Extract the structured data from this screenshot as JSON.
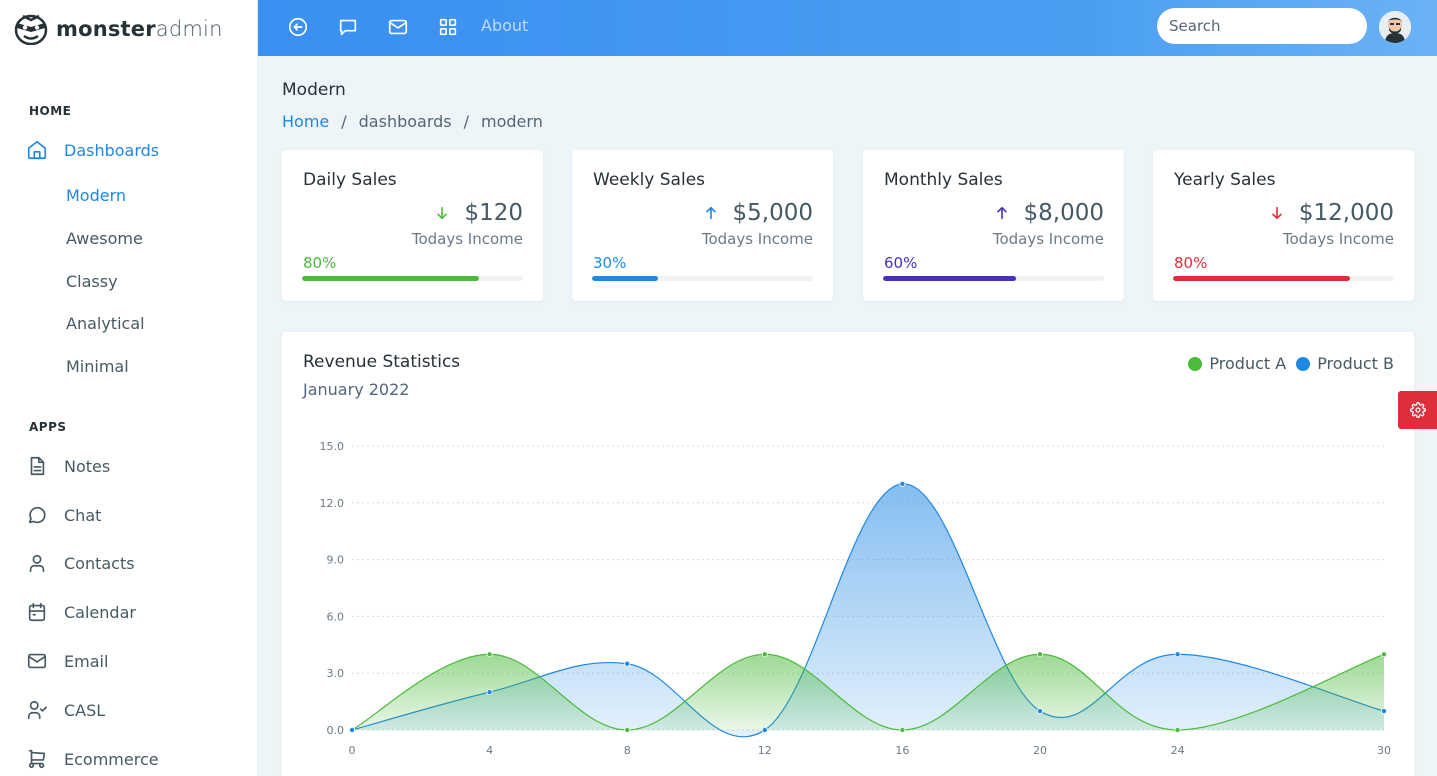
{
  "brand": {
    "name_bold": "monster",
    "name_light": "admin"
  },
  "sidebar": {
    "home_label": "HOME",
    "dashboards_label": "Dashboards",
    "dash_items": [
      "Modern",
      "Awesome",
      "Classy",
      "Analytical",
      "Minimal"
    ],
    "apps_label": "APPS",
    "apps": [
      "Notes",
      "Chat",
      "Contacts",
      "Calendar",
      "Email",
      "CASL",
      "Ecommerce"
    ]
  },
  "topbar": {
    "about_label": "About",
    "search_placeholder": "Search"
  },
  "page": {
    "title": "Modern",
    "breadcrumb": [
      "Home",
      "/",
      "dashboards",
      "/",
      "modern"
    ]
  },
  "stats": [
    {
      "title": "Daily Sales",
      "value": "$120",
      "sub": "Todays Income",
      "pct_label": "80%",
      "pct": 80,
      "trend": "down",
      "color": "#4cbb3c",
      "arrow_color": "#4cbb3c"
    },
    {
      "title": "Weekly Sales",
      "value": "$5,000",
      "sub": "Todays Income",
      "pct_label": "30%",
      "pct": 30,
      "trend": "up",
      "color": "#1e88e5",
      "arrow_color": "#1e88e5"
    },
    {
      "title": "Monthly Sales",
      "value": "$8,000",
      "sub": "Todays Income",
      "pct_label": "60%",
      "pct": 60,
      "trend": "up",
      "color": "#4a2fbd",
      "arrow_color": "#4a2fbd"
    },
    {
      "title": "Yearly Sales",
      "value": "$12,000",
      "sub": "Todays Income",
      "pct_label": "80%",
      "pct": 80,
      "trend": "down",
      "color": "#e02d3b",
      "arrow_color": "#e02d3b"
    }
  ],
  "revenue": {
    "title": "Revenue Statistics",
    "subtitle": "January 2022",
    "legend": [
      {
        "name": "Product A",
        "color": "#4cbb3c"
      },
      {
        "name": "Product B",
        "color": "#1e88e5"
      }
    ]
  },
  "chart_data": {
    "type": "area",
    "x": [
      0,
      4,
      8,
      12,
      16,
      20,
      24,
      30
    ],
    "series": [
      {
        "name": "Product A",
        "color": "#4cbb3c",
        "values": [
          0,
          4,
          0,
          4,
          0,
          4,
          0,
          4
        ]
      },
      {
        "name": "Product B",
        "color": "#1e88e5",
        "values": [
          0,
          2,
          3.5,
          0,
          13,
          1,
          4,
          1
        ]
      }
    ],
    "y_ticks": [
      "0.0",
      "3.0",
      "6.0",
      "9.0",
      "12.0",
      "15.0"
    ],
    "x_ticks": [
      "0",
      "4",
      "8",
      "12",
      "16",
      "20",
      "24",
      "30"
    ],
    "ylim": [
      0,
      15
    ],
    "xlim": [
      0,
      30
    ],
    "grid": true,
    "legend_position": "top-right"
  }
}
